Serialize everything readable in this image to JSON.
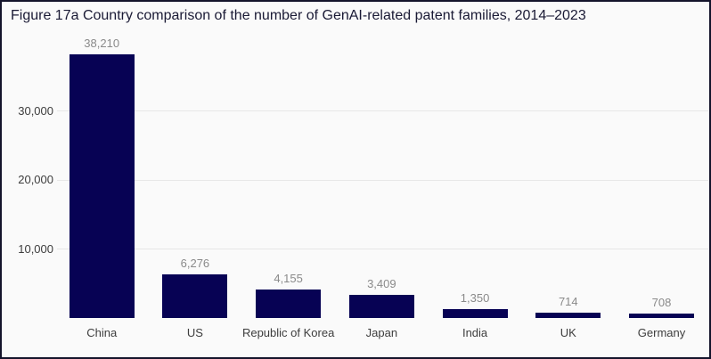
{
  "figure": {
    "title": "Figure 17a Country comparison of the number of GenAI-related patent families, 2014–2023"
  },
  "chart_data": {
    "type": "bar",
    "title": "Figure 17a Country comparison of the number of GenAI-related patent families, 2014–2023",
    "categories": [
      "China",
      "US",
      "Republic of Korea",
      "Japan",
      "India",
      "UK",
      "Germany"
    ],
    "values": [
      38210,
      6276,
      4155,
      3409,
      1350,
      714,
      708
    ],
    "value_labels": [
      "38,210",
      "6,276",
      "4,155",
      "3,409",
      "1,350",
      "714",
      "708"
    ],
    "xlabel": "",
    "ylabel": "",
    "ylim": [
      0,
      38600
    ],
    "yticks": [
      {
        "value": 10000,
        "label": "10,000"
      },
      {
        "value": 20000,
        "label": "20,000"
      },
      {
        "value": 30000,
        "label": "30,000"
      }
    ],
    "grid": "horizontal",
    "legend": "none",
    "colors": {
      "bar": "#070254",
      "grid": "#e7e7e7",
      "value_label": "#8a8a8a",
      "axis_label": "#3d3d3d",
      "background": "#fafafa",
      "title": "#1a1a35",
      "border": "#14142b"
    }
  }
}
